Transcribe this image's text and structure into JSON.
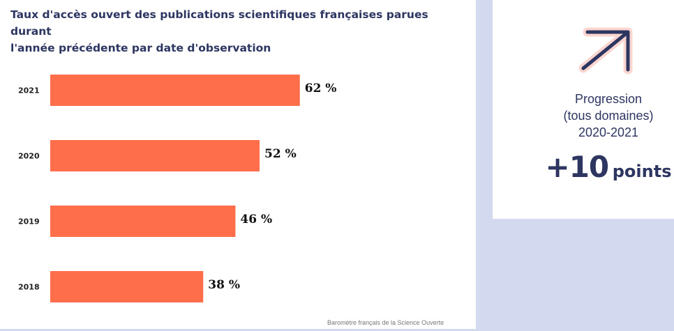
{
  "chart": {
    "title_line1": "Taux d'accès ouvert des publications scientifiques françaises parues durant",
    "title_line2": "l'année précédente par date d'observation",
    "source": "Baromètre français de la Science Ouverte"
  },
  "chart_data": {
    "type": "bar",
    "orientation": "horizontal",
    "title": "Taux d'accès ouvert des publications scientifiques françaises parues durant l'année précédente par date d'observation",
    "categories": [
      "2021",
      "2020",
      "2019",
      "2018"
    ],
    "values": [
      62,
      52,
      46,
      38
    ],
    "value_labels": [
      "62 %",
      "52 %",
      "46 %",
      "38 %"
    ],
    "xlim": [
      0,
      100
    ],
    "xlabel": "",
    "ylabel": "",
    "grid": false,
    "bar_color": "#ff6e4a"
  },
  "kpi": {
    "label_line1": "Progression",
    "label_line2": "(tous domaines)",
    "label_line3": "2020-2021",
    "number": "+10",
    "unit": "points",
    "icon": "arrow-up-right-icon"
  },
  "colors": {
    "background": "#d3d9ee",
    "navy": "#2d3561",
    "bar": "#ff6e4a",
    "icon_glow": "#fbd5cf"
  }
}
